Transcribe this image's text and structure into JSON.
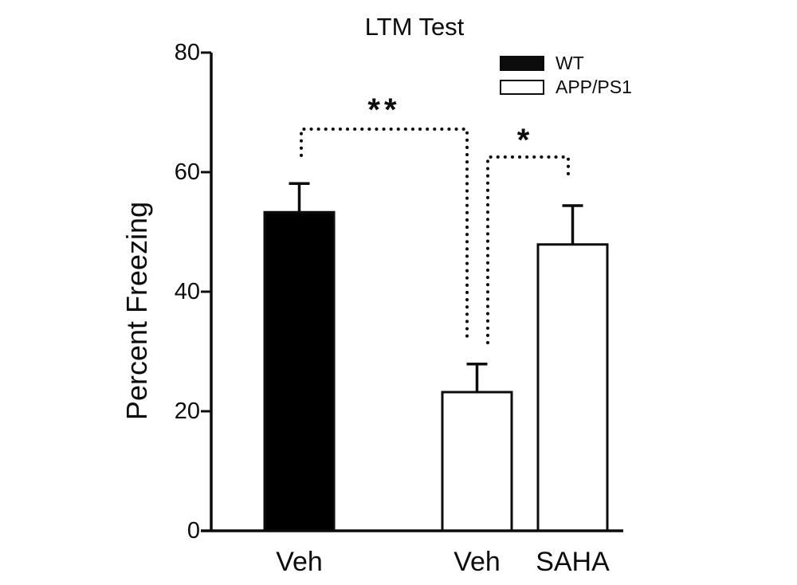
{
  "figure": {
    "title": "LTM Test",
    "ylabel": "Percent Freezing"
  },
  "chart_data": {
    "type": "bar",
    "title": "LTM Test",
    "xlabel": "",
    "ylabel": "Percent Freezing",
    "ylim": [
      0,
      80
    ],
    "yticks": [
      0,
      20,
      40,
      60,
      80
    ],
    "grid": false,
    "legend_position": "upper right",
    "legend": [
      {
        "label": "WT",
        "fill": "#000000"
      },
      {
        "label": "APP/PS1",
        "fill": "#ffffff"
      }
    ],
    "categories": [
      "Veh",
      "Veh",
      "SAHA"
    ],
    "bars": [
      {
        "category": "Veh",
        "group": "WT",
        "value": 53.3,
        "sem_plus": 4.8,
        "fill": "#000000"
      },
      {
        "category": "Veh",
        "group": "APP/PS1",
        "value": 23.2,
        "sem_plus": 4.7,
        "fill": "#ffffff"
      },
      {
        "category": "SAHA",
        "group": "APP/PS1",
        "value": 47.9,
        "sem_plus": 6.5,
        "fill": "#ffffff"
      }
    ],
    "significance": [
      {
        "symbol": "**",
        "between": [
          "WT Veh",
          "APP/PS1 Veh"
        ]
      },
      {
        "symbol": "*",
        "between": [
          "APP/PS1 Veh",
          "APP/PS1 SAHA"
        ]
      }
    ]
  }
}
